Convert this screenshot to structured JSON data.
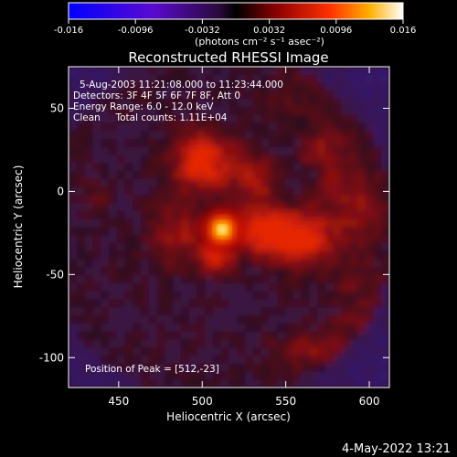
{
  "chart_data": {
    "type": "heatmap",
    "title": "Reconstructed RHESSI Image",
    "xlabel": "Heliocentric X (arcsec)",
    "ylabel": "Heliocentric Y (arcsec)",
    "xlim": [
      420,
      612
    ],
    "ylim": [
      -118,
      75
    ],
    "xticks": [
      450,
      500,
      550,
      600
    ],
    "yticks": [
      50,
      0,
      -50,
      -100
    ],
    "colorbar": {
      "ticks": [
        "-0.016",
        "-0.0096",
        "-0.0032",
        "0.0032",
        "0.0096",
        "0.016"
      ],
      "range": [
        -0.016,
        0.016
      ],
      "unit_label": "(photons cm⁻² s⁻¹ asec⁻²)"
    },
    "annotations": [
      "5-Aug-2003 11:21:08.000 to 11:23:44.000",
      "Detectors: 3F 4F 5F 6F 7F 8F, Att 0",
      "Energy Range: 6.0 - 12.0 keV",
      "Clean     Total counts: 1.11E+04"
    ],
    "peak_label": "Position of Peak = [512,-23]",
    "peak": {
      "x": 512,
      "y": -23
    },
    "timestamp": "4-May-2022 13:21"
  }
}
